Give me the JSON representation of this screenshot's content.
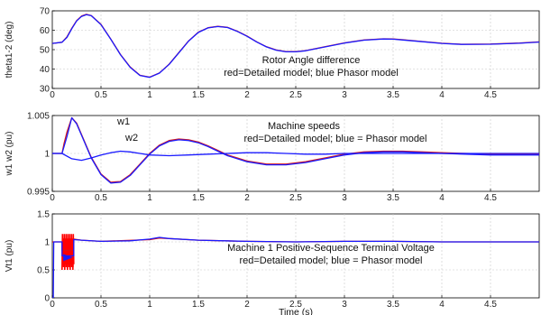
{
  "chart_data": [
    {
      "type": "line",
      "title": "",
      "annotations": [
        "Rotor Angle difference",
        "red=Detailed model; blue Phasor model"
      ],
      "ylabel": "theta1-2 (deg)",
      "xlabel": "",
      "xlim": [
        0,
        5
      ],
      "ylim": [
        30,
        70
      ],
      "x_ticks": [
        "0",
        "0.5",
        "1",
        "1.5",
        "2",
        "2.5",
        "3",
        "3.5",
        "4",
        "4.5"
      ],
      "y_ticks": [
        "30",
        "40",
        "50",
        "60",
        "70"
      ],
      "grid": true,
      "series": [
        {
          "color": "#d81b1b",
          "x": [
            0,
            0.1,
            0.15,
            0.2,
            0.25,
            0.3,
            0.35,
            0.4,
            0.5,
            0.6,
            0.7,
            0.8,
            0.9,
            1.0,
            1.1,
            1.2,
            1.3,
            1.4,
            1.5,
            1.6,
            1.7,
            1.8,
            1.9,
            2.0,
            2.1,
            2.2,
            2.3,
            2.4,
            2.5,
            2.6,
            2.8,
            3.0,
            3.2,
            3.4,
            3.5,
            3.6,
            3.8,
            4.0,
            4.2,
            4.5,
            4.8,
            5.0
          ],
          "y": [
            53.2,
            53.8,
            56.5,
            61.0,
            65.0,
            67.3,
            68.2,
            67.6,
            63.0,
            55.5,
            47.5,
            41.0,
            36.8,
            35.8,
            38.0,
            42.5,
            48.5,
            54.5,
            59.0,
            61.3,
            62.0,
            61.5,
            59.5,
            57.0,
            54.0,
            51.5,
            49.8,
            49.0,
            49.0,
            49.5,
            51.5,
            53.5,
            55.0,
            55.6,
            55.5,
            55.1,
            54.2,
            53.3,
            52.8,
            52.9,
            53.4,
            54.0
          ]
        },
        {
          "color": "#1a1aff",
          "x": [
            0,
            0.1,
            0.15,
            0.2,
            0.25,
            0.3,
            0.35,
            0.4,
            0.5,
            0.6,
            0.7,
            0.8,
            0.9,
            1.0,
            1.1,
            1.2,
            1.3,
            1.4,
            1.5,
            1.6,
            1.7,
            1.8,
            1.9,
            2.0,
            2.1,
            2.2,
            2.3,
            2.4,
            2.5,
            2.6,
            2.8,
            3.0,
            3.2,
            3.4,
            3.5,
            3.6,
            3.8,
            4.0,
            4.2,
            4.5,
            4.8,
            5.0
          ],
          "y": [
            53.2,
            53.8,
            56.3,
            60.8,
            64.8,
            67.1,
            68.0,
            67.5,
            62.9,
            55.4,
            47.4,
            40.9,
            36.7,
            35.7,
            37.9,
            42.4,
            48.4,
            54.4,
            58.9,
            61.2,
            61.9,
            61.4,
            59.4,
            56.9,
            53.9,
            51.4,
            49.7,
            48.9,
            48.9,
            49.4,
            51.4,
            53.4,
            54.9,
            55.5,
            55.4,
            55.0,
            54.1,
            53.2,
            52.7,
            52.8,
            53.3,
            53.9
          ]
        }
      ]
    },
    {
      "type": "line",
      "title": "",
      "annotations": [
        "w1",
        "w2",
        "Machine speeds",
        "red=Detailed model; blue = Phasor model"
      ],
      "ylabel": "w1 w2 (pu)",
      "xlabel": "",
      "xlim": [
        0,
        5
      ],
      "ylim": [
        0.995,
        1.005
      ],
      "x_ticks": [
        "0",
        "0.5",
        "1",
        "1.5",
        "2",
        "2.5",
        "3",
        "3.5",
        "4",
        "4.5"
      ],
      "y_ticks": [
        "0.995",
        "1",
        "1.005"
      ],
      "grid": true,
      "series": [
        {
          "color": "#d81b1b",
          "x": [
            0,
            0.1,
            0.12,
            0.15,
            0.2,
            0.25,
            0.3,
            0.4,
            0.5,
            0.6,
            0.7,
            0.8,
            0.9,
            1.0,
            1.1,
            1.2,
            1.3,
            1.4,
            1.5,
            1.6,
            1.7,
            1.8,
            2.0,
            2.2,
            2.4,
            2.6,
            2.8,
            3.0,
            3.2,
            3.4,
            3.6,
            3.8,
            4.0,
            4.5,
            5.0
          ],
          "y": [
            1.0,
            1.0,
            1.0013,
            1.0028,
            1.0047,
            1.004,
            1.0025,
            0.9995,
            0.9973,
            0.9962,
            0.9963,
            0.9972,
            0.9986,
            1.0,
            1.0011,
            1.0017,
            1.0019,
            1.0018,
            1.0015,
            1.001,
            1.0004,
            0.9998,
            0.999,
            0.9986,
            0.9986,
            0.9989,
            0.9994,
            0.9999,
            1.0002,
            1.0003,
            1.0003,
            1.0002,
            1.0001,
            0.9999,
            0.9999
          ]
        },
        {
          "color": "#1a1aff",
          "x": [
            0,
            0.1,
            0.15,
            0.2,
            0.25,
            0.3,
            0.4,
            0.5,
            0.6,
            0.7,
            0.8,
            0.9,
            1.0,
            1.1,
            1.2,
            1.3,
            1.4,
            1.5,
            1.6,
            1.7,
            1.8,
            2.0,
            2.2,
            2.4,
            2.6,
            2.8,
            3.0,
            3.2,
            3.4,
            3.6,
            3.8,
            4.0,
            4.5,
            5.0
          ],
          "y": [
            1.0,
            1.0,
            1.0022,
            1.0047,
            1.0039,
            1.0024,
            0.9994,
            0.9972,
            0.9961,
            0.9962,
            0.9971,
            0.9985,
            0.9999,
            1.001,
            1.0016,
            1.0018,
            1.0017,
            1.0014,
            1.0009,
            1.0003,
            0.9997,
            0.9989,
            0.9985,
            0.9985,
            0.9988,
            0.9993,
            0.9998,
            1.0001,
            1.0002,
            1.0002,
            1.0001,
            1.0,
            0.9998,
            0.9998
          ]
        },
        {
          "color": "#1a1aff",
          "x": [
            0,
            0.1,
            0.2,
            0.3,
            0.4,
            0.5,
            0.6,
            0.7,
            0.8,
            0.9,
            1.0,
            1.2,
            1.4,
            1.6,
            1.8,
            2.0,
            2.2,
            2.4,
            2.6,
            2.8,
            3.0,
            3.2,
            3.4,
            3.6,
            3.8,
            4.0,
            4.5,
            5.0
          ],
          "y": [
            1.0,
            1.0,
            0.9993,
            0.9991,
            0.9994,
            0.9998,
            1.0001,
            1.0003,
            1.0002,
            1.0,
            0.9998,
            0.9997,
            0.9998,
            0.9999,
            1.0,
            1.0001,
            1.0001,
            1.0,
            0.9999,
            0.9999,
            1.0,
            1.0,
            1.0,
            1.0,
            1.0,
            1.0,
            1.0,
            1.0
          ]
        }
      ]
    },
    {
      "type": "line",
      "title": "",
      "annotations": [
        "Machine 1 Positive-Sequence Terminal Voltage",
        "red=Detailed model; blue = Phasor model"
      ],
      "ylabel": "Vt1 (pu)",
      "xlabel": "Time (s)",
      "xlim": [
        0,
        5
      ],
      "ylim": [
        0,
        1.5
      ],
      "x_ticks": [
        "0",
        "0.5",
        "1",
        "1.5",
        "2",
        "2.5",
        "3",
        "3.5",
        "4",
        "4.5"
      ],
      "y_ticks": [
        "0",
        "0.5",
        "1",
        "1.5"
      ],
      "grid": true,
      "series": [
        {
          "color": "#e01010",
          "x": [
            0,
            0.1,
            0.1,
            0.22,
            0.22,
            0.3,
            0.5,
            1.0,
            1.1,
            1.2,
            1.5,
            2.0,
            2.5,
            3.0,
            3.5,
            4.0,
            4.5,
            5.0
          ],
          "y": [
            1.0,
            1.0,
            0.85,
            0.85,
            1.05,
            1.03,
            1.01,
            1.04,
            1.07,
            1.06,
            1.03,
            1.01,
            1.0,
            1.01,
            1.01,
            1.0,
            1.0,
            1.0
          ]
        },
        {
          "color": "#1a1aff",
          "x": [
            0,
            0.01,
            0.015,
            0.1,
            0.1,
            0.22,
            0.22,
            0.3,
            0.5,
            0.8,
            1.0,
            1.1,
            1.2,
            1.5,
            2.0,
            2.5,
            3.0,
            3.5,
            4.0,
            4.5,
            5.0
          ],
          "y": [
            0.0,
            0.0,
            1.0,
            1.0,
            0.75,
            0.75,
            1.04,
            1.03,
            1.01,
            1.02,
            1.05,
            1.08,
            1.06,
            1.03,
            1.01,
            1.0,
            1.01,
            1.01,
            1.0,
            1.0,
            1.0
          ]
        }
      ],
      "burst": {
        "color": "#ff0000",
        "x_range": [
          0.1,
          0.22
        ],
        "y_range": [
          0.5,
          1.18
        ]
      }
    }
  ]
}
